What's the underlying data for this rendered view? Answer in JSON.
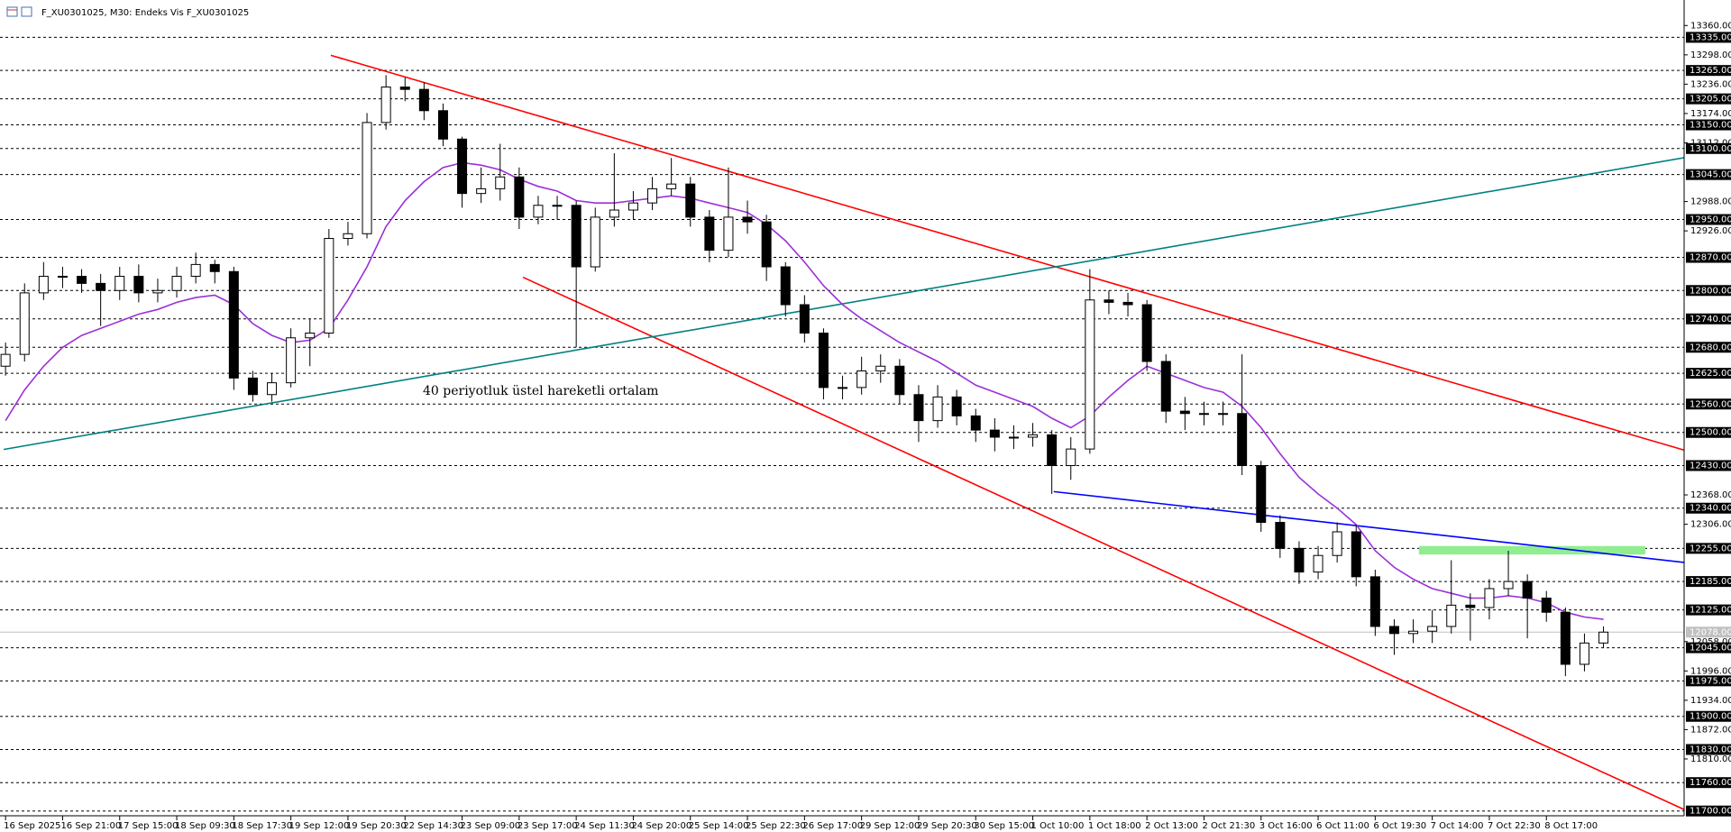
{
  "chart_data": {
    "type": "candlestick",
    "title": "F_XU0301025, M30:  Endeks Vis F_XU0301025",
    "annotation": "40 periyotluk üstel hareketli ortalam",
    "categories": [
      "16 Sep 2025",
      null,
      null,
      "16 Sep 21:00",
      null,
      null,
      "17 Sep 15:00",
      null,
      null,
      "18 Sep 09:30",
      null,
      null,
      "18 Sep 17:30",
      null,
      null,
      "19 Sep 12:00",
      null,
      null,
      "19 Sep 20:30",
      null,
      null,
      "22 Sep 14:30",
      null,
      null,
      "23 Sep 09:00",
      null,
      null,
      "23 Sep 17:00",
      null,
      null,
      "24 Sep 11:30",
      null,
      null,
      "24 Sep 20:00",
      null,
      null,
      "25 Sep 14:00",
      null,
      null,
      "25 Sep 22:30",
      null,
      null,
      "26 Sep 17:00",
      null,
      null,
      "29 Sep 12:00",
      null,
      null,
      "29 Sep 20:30",
      null,
      null,
      "30 Sep 15:00",
      null,
      null,
      "1 Oct 10:00",
      null,
      null,
      "1 Oct 18:00",
      null,
      null,
      "2 Oct 13:00",
      null,
      null,
      "2 Oct 21:30",
      null,
      null,
      "3 Oct 16:00",
      null,
      null,
      "6 Oct 11:00",
      null,
      null,
      "6 Oct 19:30",
      null,
      null,
      "7 Oct 14:00",
      null,
      null,
      "7 Oct 22:30",
      null,
      null,
      "8 Oct 17:00",
      null,
      null,
      null
    ],
    "ohlc": [
      [
        12640,
        12690,
        12620,
        12665
      ],
      [
        12665,
        12815,
        12650,
        12795
      ],
      [
        12795,
        12860,
        12780,
        12830
      ],
      [
        12830,
        12850,
        12805,
        12830
      ],
      [
        12830,
        12845,
        12795,
        12815
      ],
      [
        12815,
        12835,
        12725,
        12800
      ],
      [
        12800,
        12850,
        12780,
        12830
      ],
      [
        12830,
        12855,
        12775,
        12795
      ],
      [
        12795,
        12825,
        12775,
        12800
      ],
      [
        12800,
        12850,
        12785,
        12830
      ],
      [
        12830,
        12880,
        12815,
        12855
      ],
      [
        12855,
        12865,
        12815,
        12840
      ],
      [
        12840,
        12850,
        12590,
        12615
      ],
      [
        12615,
        12630,
        12565,
        12580
      ],
      [
        12580,
        12625,
        12565,
        12605
      ],
      [
        12605,
        12720,
        12595,
        12700
      ],
      [
        12700,
        12740,
        12640,
        12710
      ],
      [
        12710,
        12930,
        12700,
        12910
      ],
      [
        12910,
        12945,
        12895,
        12920
      ],
      [
        12920,
        13175,
        12910,
        13155
      ],
      [
        13155,
        13255,
        13140,
        13230
      ],
      [
        13230,
        13250,
        13200,
        13225
      ],
      [
        13225,
        13240,
        13160,
        13180
      ],
      [
        13180,
        13195,
        13105,
        13120
      ],
      [
        13120,
        13125,
        12975,
        13005
      ],
      [
        13005,
        13060,
        12985,
        13015
      ],
      [
        13015,
        13110,
        12990,
        13040
      ],
      [
        13040,
        13060,
        12930,
        12955
      ],
      [
        12955,
        13000,
        12940,
        12980
      ],
      [
        12980,
        13000,
        12950,
        12980
      ],
      [
        12980,
        12990,
        12680,
        12850
      ],
      [
        12850,
        12975,
        12840,
        12955
      ],
      [
        12955,
        13090,
        12935,
        12970
      ],
      [
        12970,
        13010,
        12950,
        12985
      ],
      [
        12985,
        13040,
        12970,
        13015
      ],
      [
        13015,
        13080,
        13000,
        13025
      ],
      [
        13025,
        13040,
        12935,
        12955
      ],
      [
        12955,
        12970,
        12860,
        12885
      ],
      [
        12885,
        13060,
        12870,
        12955
      ],
      [
        12955,
        12990,
        12920,
        12945
      ],
      [
        12945,
        12960,
        12820,
        12850
      ],
      [
        12850,
        12860,
        12745,
        12770
      ],
      [
        12770,
        12790,
        12690,
        12710
      ],
      [
        12710,
        12720,
        12570,
        12595
      ],
      [
        12595,
        12620,
        12570,
        12595
      ],
      [
        12595,
        12660,
        12580,
        12630
      ],
      [
        12630,
        12665,
        12605,
        12640
      ],
      [
        12640,
        12655,
        12560,
        12580
      ],
      [
        12580,
        12600,
        12480,
        12525
      ],
      [
        12525,
        12600,
        12510,
        12575
      ],
      [
        12575,
        12590,
        12515,
        12535
      ],
      [
        12535,
        12550,
        12480,
        12505
      ],
      [
        12505,
        12530,
        12460,
        12490
      ],
      [
        12490,
        12515,
        12465,
        12490
      ],
      [
        12490,
        12520,
        12470,
        12495
      ],
      [
        12495,
        12505,
        12370,
        12430
      ],
      [
        12430,
        12490,
        12400,
        12465
      ],
      [
        12465,
        12845,
        12455,
        12780
      ],
      [
        12780,
        12800,
        12750,
        12775
      ],
      [
        12775,
        12795,
        12745,
        12770
      ],
      [
        12770,
        12780,
        12630,
        12650
      ],
      [
        12650,
        12665,
        12520,
        12545
      ],
      [
        12545,
        12575,
        12505,
        12540
      ],
      [
        12540,
        12565,
        12515,
        12540
      ],
      [
        12540,
        12565,
        12515,
        12540
      ],
      [
        12540,
        12665,
        12410,
        12430
      ],
      [
        12430,
        12440,
        12290,
        12310
      ],
      [
        12310,
        12325,
        12235,
        12255
      ],
      [
        12255,
        12270,
        12180,
        12205
      ],
      [
        12205,
        12260,
        12190,
        12240
      ],
      [
        12240,
        12310,
        12225,
        12290
      ],
      [
        12290,
        12305,
        12175,
        12195
      ],
      [
        12195,
        12210,
        12070,
        12090
      ],
      [
        12090,
        12105,
        12030,
        12075
      ],
      [
        12075,
        12105,
        12055,
        12080
      ],
      [
        12080,
        12125,
        12055,
        12090
      ],
      [
        12090,
        12230,
        12075,
        12135
      ],
      [
        12135,
        12160,
        12060,
        12130
      ],
      [
        12130,
        12190,
        12105,
        12170
      ],
      [
        12170,
        12250,
        12155,
        12185
      ],
      [
        12185,
        12200,
        12065,
        12150
      ],
      [
        12150,
        12165,
        12100,
        12120
      ],
      [
        12120,
        12130,
        11985,
        12010
      ],
      [
        12010,
        12075,
        11995,
        12055
      ],
      [
        12055,
        12090,
        12045,
        12078
      ]
    ],
    "candle_color": "#000000",
    "ema": {
      "color": "#9b30d9",
      "values": [
        12525,
        12590,
        12640,
        12680,
        12705,
        12720,
        12735,
        12750,
        12760,
        12775,
        12785,
        12790,
        12770,
        12730,
        12705,
        12690,
        12695,
        12720,
        12780,
        12850,
        12935,
        12990,
        13030,
        13060,
        13070,
        13065,
        13055,
        13035,
        13020,
        13010,
        12990,
        12985,
        12985,
        12990,
        12995,
        13000,
        12995,
        12985,
        12975,
        12965,
        12940,
        12905,
        12860,
        12810,
        12770,
        12740,
        12715,
        12690,
        12670,
        12650,
        12625,
        12600,
        12585,
        12570,
        12555,
        12530,
        12510,
        12535,
        12575,
        12610,
        12640,
        12625,
        12610,
        12595,
        12585,
        12555,
        12510,
        12455,
        12405,
        12370,
        12340,
        12305,
        12250,
        12215,
        12190,
        12170,
        12160,
        12150,
        12150,
        12155,
        12150,
        12140,
        12120,
        12110,
        12105
      ]
    },
    "lines": [
      {
        "color": "#ff0000",
        "x": [
          17.1,
          88.3
        ],
        "y": [
          13297,
          12462
        ]
      },
      {
        "color": "#ff0000",
        "x": [
          27.2,
          88.3
        ],
        "y": [
          12828,
          11702
        ]
      },
      {
        "color": "#008080",
        "x": [
          -0.1,
          88.3
        ],
        "y": [
          12464,
          13081
        ]
      },
      {
        "color": "#0000ff",
        "x": [
          55.1,
          88.3
        ],
        "y": [
          12375,
          12225
        ]
      }
    ],
    "zone": {
      "color": "#90ee90",
      "x": [
        74.3,
        86.2
      ],
      "y": [
        12242,
        12260
      ]
    },
    "ylim": [
      11700,
      13360
    ],
    "yticks": [
      13360,
      13298,
      13236,
      13174,
      13112,
      12988,
      12926,
      12368,
      12306,
      12058,
      11996,
      11934,
      11872,
      11810
    ],
    "levels": [
      {
        "value": 13335,
        "label": "13335.00"
      },
      {
        "value": 13265,
        "label": "13265.00"
      },
      {
        "value": 13205,
        "label": "13205.00"
      },
      {
        "value": 13150,
        "label": "13150.00"
      },
      {
        "value": 13100,
        "label": "13100.00"
      },
      {
        "value": 13045,
        "label": "13045.00"
      },
      {
        "value": 12950,
        "label": "12950.00"
      },
      {
        "value": 12870,
        "label": "12870.00"
      },
      {
        "value": 12800,
        "label": "12800.00"
      },
      {
        "value": 12740,
        "label": "12740.00"
      },
      {
        "value": 12680,
        "label": "12680.00"
      },
      {
        "value": 12625,
        "label": "12625.00"
      },
      {
        "value": 12560,
        "label": "12560.00"
      },
      {
        "value": 12500,
        "label": "12500.00"
      },
      {
        "value": 12430,
        "label": "12430.00"
      },
      {
        "value": 12340,
        "label": "12340.00"
      },
      {
        "value": 12255,
        "label": "12255.00"
      },
      {
        "value": 12185,
        "label": "12185.00"
      },
      {
        "value": 12125,
        "label": "12125.00"
      },
      {
        "value": 12045,
        "label": "12045.00"
      },
      {
        "value": 11975,
        "label": "11975.00"
      },
      {
        "value": 11900,
        "label": "11900.00"
      },
      {
        "value": 11830,
        "label": "11830.00"
      },
      {
        "value": 11760,
        "label": "11760.00"
      },
      {
        "value": 11700,
        "label": "11700.00"
      }
    ],
    "ytick_labels": [
      "13360.00",
      "13298.00",
      "13236.00",
      "13174.00",
      "13112.00",
      "12988.00",
      "12926.00",
      "12368.00",
      "12306.00",
      "12058.00",
      "11996.00",
      "11934.00",
      "11872.00",
      "11810.00"
    ],
    "current_price": {
      "value": 12078,
      "label": "12078.00",
      "color": "#c0c0c0"
    }
  }
}
